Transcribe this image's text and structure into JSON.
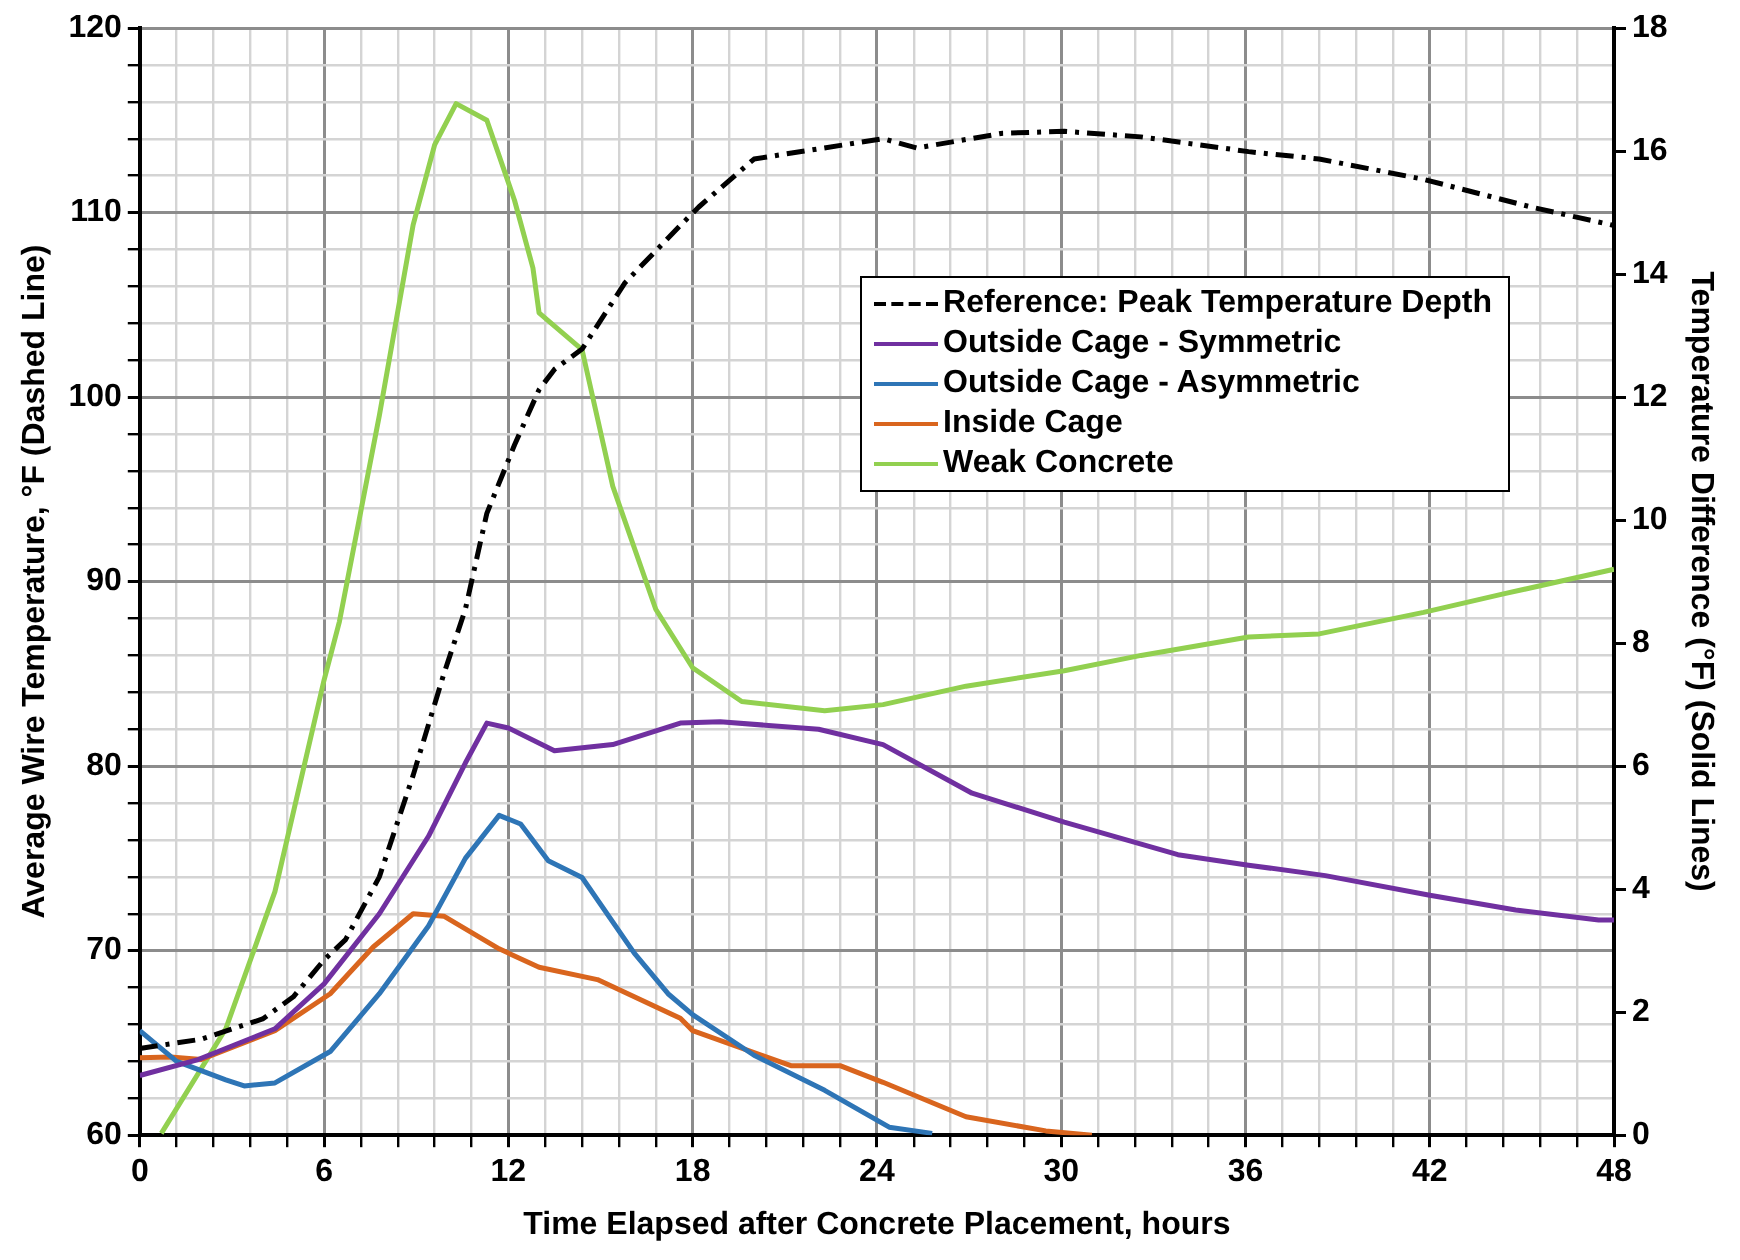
{
  "chart_data": {
    "type": "line",
    "xlabel": "Time Elapsed after Concrete Placement, hours",
    "ylabel": "Average Wire Temperature, °F (Dashed Line)",
    "y2label": "Temperature Difference (°F) (Solid Lines)",
    "xlim": [
      0,
      48
    ],
    "xticks": [
      0,
      {
        "value": 1.2,
        "label": null
      },
      {
        "value": 2.4,
        "label": null
      },
      {
        "value": 3.6,
        "label": null
      },
      {
        "value": 4.8,
        "label": null
      },
      6,
      {
        "value": 7.2,
        "label": null
      },
      {
        "value": 8.4,
        "label": null
      },
      {
        "value": 9.6,
        "label": null
      },
      {
        "value": 10.8,
        "label": null
      },
      12,
      {
        "value": 13.2,
        "label": null
      },
      {
        "value": 14.4,
        "label": null
      },
      {
        "value": 15.6,
        "label": null
      },
      {
        "value": 16.8,
        "label": null
      },
      18,
      {
        "value": 19.2,
        "label": null
      },
      {
        "value": 20.4,
        "label": null
      },
      {
        "value": 21.6,
        "label": null
      },
      {
        "value": 22.8,
        "label": null
      },
      24,
      {
        "value": 25.2,
        "label": null
      },
      {
        "value": 26.4,
        "label": null
      },
      {
        "value": 27.6,
        "label": null
      },
      {
        "value": 28.8,
        "label": null
      },
      30,
      {
        "value": 31.2,
        "label": null
      },
      {
        "value": 32.4,
        "label": null
      },
      {
        "value": 33.6,
        "label": null
      },
      {
        "value": 34.8,
        "label": null
      },
      36,
      {
        "value": 37.2,
        "label": null
      },
      {
        "value": 38.4,
        "label": null
      },
      {
        "value": 39.6,
        "label": null
      },
      {
        "value": 40.8,
        "label": null
      },
      42,
      {
        "value": 43.2,
        "label": null
      },
      {
        "value": 44.4,
        "label": null
      },
      {
        "value": 45.6,
        "label": null
      },
      {
        "value": 46.8,
        "label": null
      },
      48
    ],
    "ylim": [
      60,
      120
    ],
    "yticks": [
      60,
      {
        "value": 62,
        "label": null
      },
      {
        "value": 64,
        "label": null
      },
      {
        "value": 66,
        "label": null
      },
      {
        "value": 68,
        "label": null
      },
      70,
      {
        "value": 72,
        "label": null
      },
      {
        "value": 74,
        "label": null
      },
      {
        "value": 76,
        "label": null
      },
      {
        "value": 78,
        "label": null
      },
      80,
      {
        "value": 82,
        "label": null
      },
      {
        "value": 84,
        "label": null
      },
      {
        "value": 86,
        "label": null
      },
      {
        "value": 88,
        "label": null
      },
      90,
      {
        "value": 92,
        "label": null
      },
      {
        "value": 94,
        "label": null
      },
      {
        "value": 96,
        "label": null
      },
      {
        "value": 98,
        "label": null
      },
      100,
      {
        "value": 102,
        "label": null
      },
      {
        "value": 104,
        "label": null
      },
      {
        "value": 106,
        "label": null
      },
      {
        "value": 108,
        "label": null
      },
      110,
      {
        "value": 112,
        "label": null
      },
      {
        "value": 114,
        "label": null
      },
      {
        "value": 116,
        "label": null
      },
      {
        "value": 118,
        "label": null
      },
      120
    ],
    "y2lim": [
      0,
      18
    ],
    "y2ticks": [
      0,
      2,
      4,
      6,
      8,
      10,
      12,
      14,
      16,
      18
    ],
    "grid": true,
    "legend": "top right",
    "marker": "none",
    "series": [
      {
        "name": "Reference: Peak Temperature Depth",
        "color": "#000000",
        "axis": "y",
        "line_style": "dashed",
        "x": [
          0,
          2,
          4,
          5,
          6,
          6.7,
          7.8,
          8.9,
          9.9,
          10.6,
          11.3,
          12.2,
          13,
          13.5,
          14.4,
          15.8,
          17.6,
          18.2,
          20,
          21.9,
          24.2,
          25.3,
          28.1,
          30.1,
          32.6,
          36.1,
          38.4,
          41.8,
          45.3,
          48
        ],
        "values": [
          64.7,
          65.2,
          66.3,
          67.5,
          69.5,
          70.6,
          74,
          79.5,
          85,
          88.5,
          93.7,
          97.4,
          100.4,
          101.5,
          102.6,
          106.2,
          109.3,
          110.3,
          112.9,
          113.4,
          114,
          113.5,
          114.3,
          114.4,
          114.1,
          113.3,
          112.9,
          111.8,
          110.3,
          109.3
        ]
      },
      {
        "name": "Outside Cage - Symmetric",
        "color": "#7030a0",
        "axis": "y2",
        "line_style": "solid",
        "x": [
          0,
          1.9,
          4.4,
          6,
          7.8,
          9.4,
          10.6,
          11.3,
          12,
          13.5,
          15.4,
          17.6,
          18.9,
          22.1,
          24.2,
          27.1,
          30.1,
          33.8,
          36.1,
          38.6,
          42,
          44.8,
          47.5,
          48
        ],
        "values": [
          0.97,
          1.23,
          1.73,
          2.46,
          3.6,
          4.86,
          6.05,
          6.7,
          6.62,
          6.25,
          6.35,
          6.7,
          6.72,
          6.6,
          6.35,
          5.56,
          5.09,
          4.56,
          4.39,
          4.22,
          3.9,
          3.66,
          3.5,
          3.5
        ]
      },
      {
        "name": "Outside Cage - Asymmetric",
        "color": "#2e75b6",
        "axis": "y2",
        "line_style": "solid",
        "x": [
          0,
          1.2,
          2.8,
          3.4,
          4.4,
          6.2,
          7.8,
          9.4,
          10.6,
          11.7,
          12.4,
          13.3,
          14.4,
          16.1,
          17.2,
          18,
          20,
          22.3,
          24.4,
          25.8
        ],
        "values": [
          1.7,
          1.2,
          0.9,
          0.8,
          0.85,
          1.36,
          2.3,
          3.4,
          4.5,
          5.2,
          5.06,
          4.46,
          4.19,
          2.96,
          2.3,
          1.96,
          1.3,
          0.73,
          0.13,
          0.03
        ]
      },
      {
        "name": "Inside Cage",
        "color": "#d9651e",
        "axis": "y2",
        "line_style": "solid",
        "x": [
          0,
          1,
          2,
          4.4,
          6.2,
          7.6,
          8.9,
          9.9,
          11.7,
          13,
          14.9,
          17.6,
          18,
          21.2,
          22.8,
          24.2,
          26.9,
          29.5,
          31
        ],
        "values": [
          1.26,
          1.27,
          1.23,
          1.7,
          2.3,
          3.06,
          3.6,
          3.56,
          3.03,
          2.73,
          2.53,
          1.9,
          1.7,
          1.13,
          1.13,
          0.86,
          0.3,
          0.07,
          0
        ]
      },
      {
        "name": "Weak Concrete",
        "color": "#92d050",
        "axis": "y2",
        "line_style": "solid",
        "x": [
          0.7,
          2.8,
          4.4,
          6,
          6.5,
          7.8,
          8.9,
          9.6,
          10.3,
          11.3,
          12.2,
          12.8,
          13,
          14.4,
          15.4,
          16.8,
          18,
          19.6,
          22.3,
          24.2,
          26.9,
          30.1,
          32.6,
          36.1,
          38.4,
          41.8,
          44.4,
          48
        ],
        "values": [
          0.03,
          1.73,
          3.96,
          7.4,
          8.35,
          11.7,
          14.8,
          16.1,
          16.77,
          16.5,
          15.2,
          14.1,
          13.37,
          12.77,
          10.55,
          8.55,
          7.6,
          7.05,
          6.9,
          7,
          7.3,
          7.55,
          7.8,
          8.1,
          8.15,
          8.5,
          8.8,
          9.2
        ]
      }
    ]
  }
}
